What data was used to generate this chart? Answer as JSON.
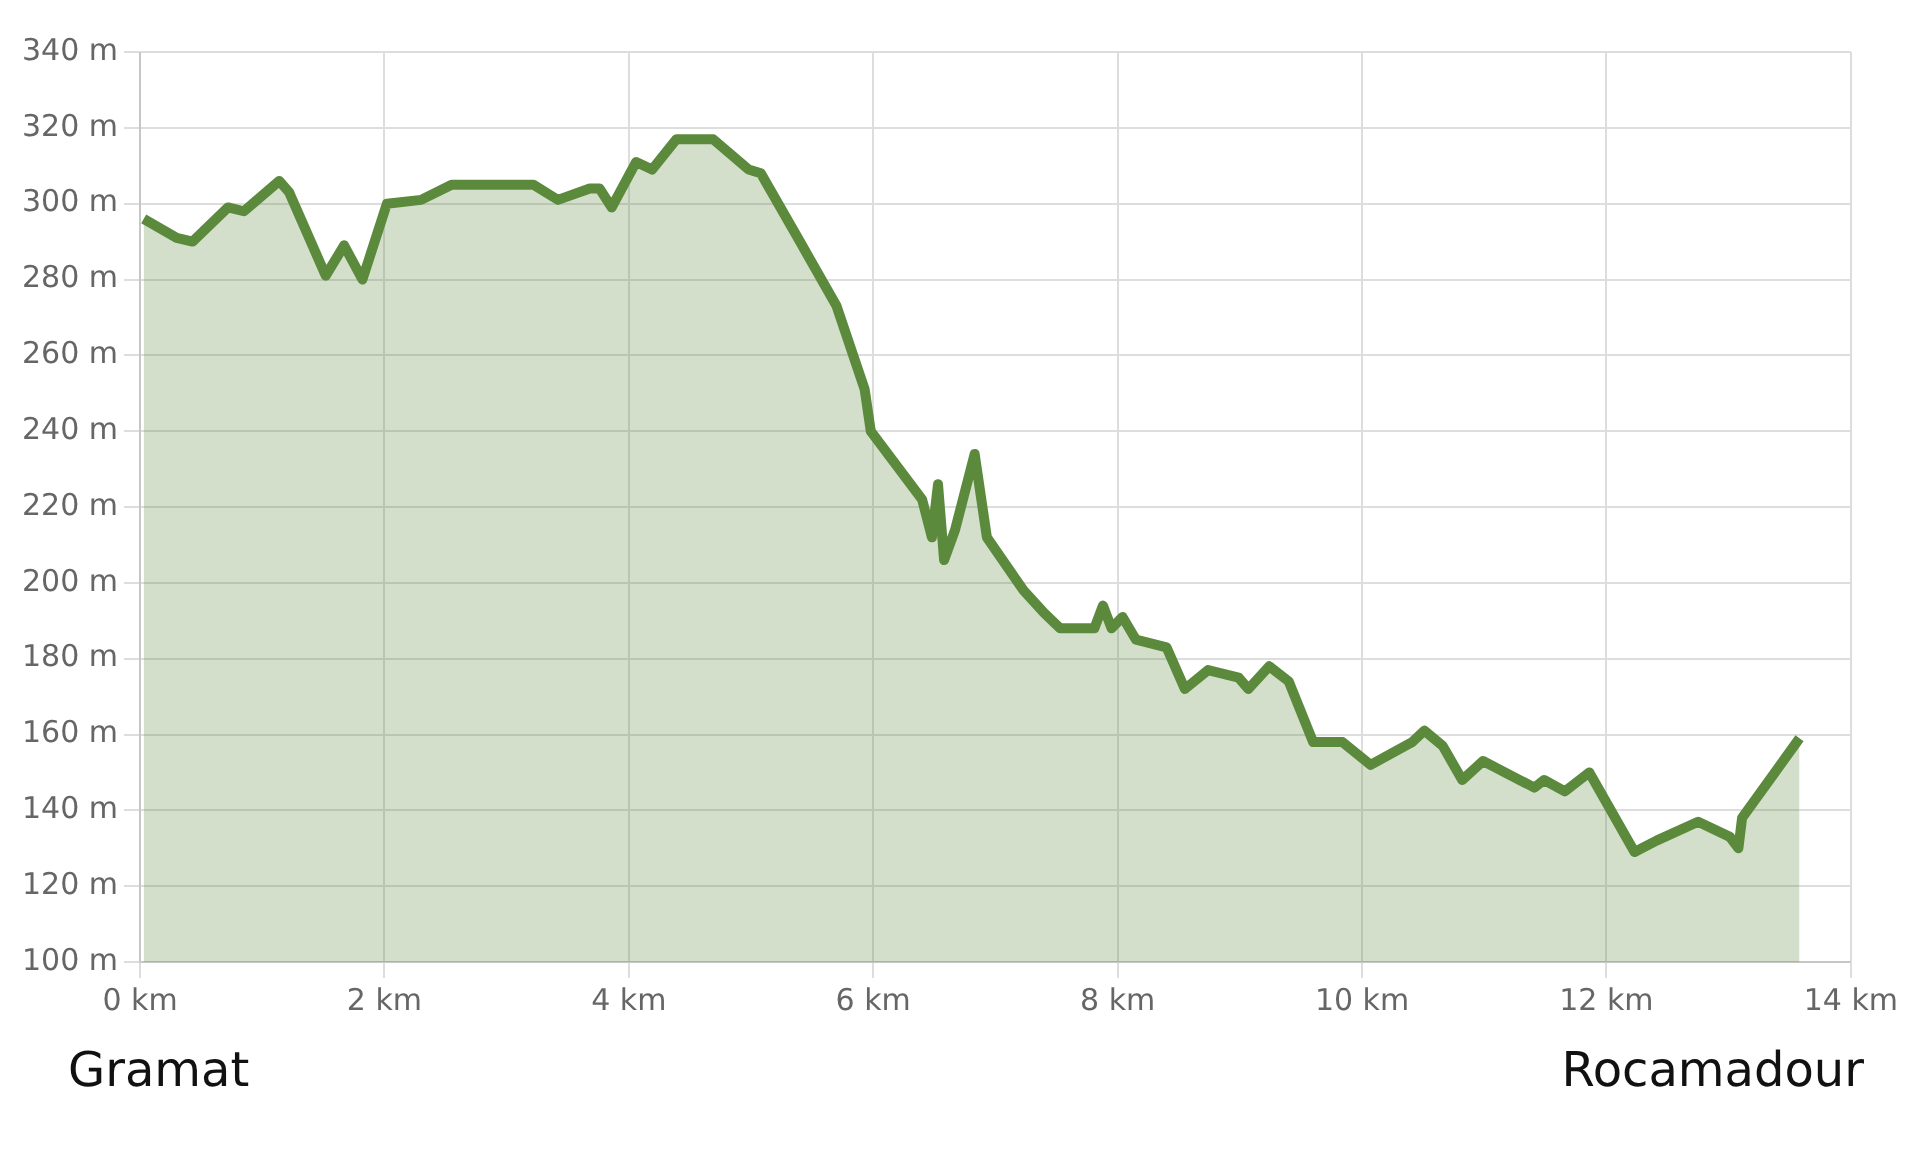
{
  "chart_data": {
    "type": "area",
    "xlim": [
      0,
      14
    ],
    "ylim": [
      100,
      340
    ],
    "xticks": [
      {
        "value": 0,
        "label": "0 km"
      },
      {
        "value": 2,
        "label": "2 km"
      },
      {
        "value": 4,
        "label": "4 km"
      },
      {
        "value": 6,
        "label": "6 km"
      },
      {
        "value": 8,
        "label": "8 km"
      },
      {
        "value": 10,
        "label": "10 km"
      },
      {
        "value": 12,
        "label": "12 km"
      },
      {
        "value": 14,
        "label": "14 km"
      }
    ],
    "yticks": [
      {
        "value": 100,
        "label": "100 m"
      },
      {
        "value": 120,
        "label": "120 m"
      },
      {
        "value": 140,
        "label": "140 m"
      },
      {
        "value": 160,
        "label": "160 m"
      },
      {
        "value": 180,
        "label": "180 m"
      },
      {
        "value": 200,
        "label": "200 m"
      },
      {
        "value": 220,
        "label": "220 m"
      },
      {
        "value": 240,
        "label": "240 m"
      },
      {
        "value": 260,
        "label": "260 m"
      },
      {
        "value": 280,
        "label": "280 m"
      },
      {
        "value": 300,
        "label": "300 m"
      },
      {
        "value": 320,
        "label": "320 m"
      },
      {
        "value": 340,
        "label": "340 m"
      }
    ],
    "grid": true,
    "legend": false,
    "marker": "none",
    "line_style": "solid",
    "annotations": [
      "Gramat",
      "Rocamadour"
    ],
    "series": [
      {
        "color": "#5b8a3c",
        "x": [
          0.03,
          0.3,
          0.43,
          0.72,
          0.85,
          1.14,
          1.22,
          1.52,
          1.67,
          1.82,
          2.02,
          2.3,
          2.55,
          3.22,
          3.42,
          3.68,
          3.76,
          3.86,
          4.06,
          4.19,
          4.39,
          4.69,
          4.98,
          5.08,
          5.4,
          5.7,
          5.93,
          5.98,
          6.4,
          6.48,
          6.53,
          6.58,
          6.67,
          6.83,
          6.93,
          7.23,
          7.4,
          7.53,
          7.81,
          7.88,
          7.95,
          8.04,
          8.15,
          8.4,
          8.55,
          8.74,
          8.99,
          9.07,
          9.24,
          9.4,
          9.6,
          9.84,
          10.07,
          10.41,
          10.51,
          10.66,
          10.82,
          10.99,
          11.41,
          11.49,
          11.66,
          11.86,
          12.23,
          12.41,
          12.75,
          13.01,
          13.08,
          13.11,
          13.58
        ],
        "values": [
          296,
          291,
          290,
          299,
          298,
          306,
          303,
          281,
          289,
          280,
          300,
          301,
          305,
          305,
          301,
          304,
          304,
          299,
          311,
          309,
          317,
          317,
          309,
          308,
          290,
          273,
          251,
          240,
          222,
          212,
          226,
          206,
          214,
          234,
          212,
          198,
          192,
          188,
          188,
          194,
          188,
          191,
          185,
          183,
          172,
          177,
          175,
          172,
          178,
          174,
          158,
          158,
          152,
          158,
          161,
          157,
          148,
          153,
          146,
          148,
          145,
          150,
          129,
          132,
          137,
          133,
          130,
          138,
          159
        ]
      }
    ]
  }
}
